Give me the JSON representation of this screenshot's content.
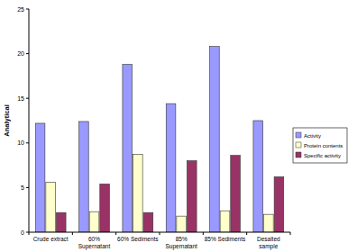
{
  "chart_data": {
    "type": "bar",
    "y_label": "Analytical",
    "categories": [
      "Crude extract",
      "60% Supernatant",
      "60% Sediments",
      "85% Supernatant",
      "85% Sediments",
      "Desalted sample"
    ],
    "series": [
      {
        "name": "Activity",
        "color": "#9999ff",
        "values": [
          12.2,
          12.4,
          18.8,
          14.4,
          20.8,
          12.5
        ]
      },
      {
        "name": "Protein contents",
        "color": "#ffffcc",
        "values": [
          5.6,
          2.3,
          8.7,
          1.8,
          2.4,
          2.0
        ]
      },
      {
        "name": "Specific activity",
        "color": "#993366",
        "values": [
          2.2,
          5.4,
          2.2,
          8.0,
          8.6,
          6.2
        ]
      }
    ],
    "ylim": [
      0,
      25
    ],
    "yticks": [
      0,
      5,
      10,
      15,
      20,
      25
    ],
    "grid": false,
    "legend": "right"
  }
}
